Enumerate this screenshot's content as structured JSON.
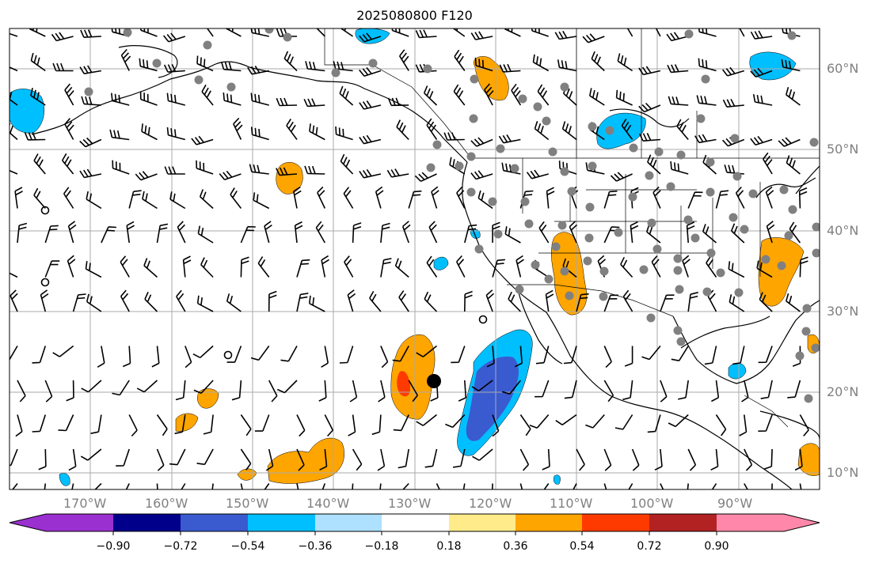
{
  "title": "2025080800 F120",
  "lat_labels": [
    "60°N",
    "50°N",
    "40°N",
    "30°N",
    "20°N",
    "10°N"
  ],
  "lon_labels": [
    "170°W",
    "160°W",
    "150°W",
    "140°W",
    "130°W",
    "120°W",
    "110°W",
    "100°W",
    "90°W"
  ],
  "colorbar": {
    "tick_labels": [
      "−0.90",
      "−0.72",
      "−0.54",
      "−0.36",
      "−0.18",
      "0.18",
      "0.36",
      "0.54",
      "0.72",
      "0.90"
    ],
    "colors": [
      "#9b30d0",
      "#00008b",
      "#3a5bd0",
      "#00bfff",
      "#aee0ff",
      "#ffffff",
      "#ffeb8a",
      "#ffa500",
      "#ff3a00",
      "#b22222",
      "#ff88aa"
    ],
    "extend": "both"
  },
  "map": {
    "lon_range": [
      -180,
      -80
    ],
    "lat_range": [
      8,
      65
    ],
    "projection": "plate-carree",
    "gridlines": true,
    "gridline_color": "#aaaaaa",
    "barb_color": "#000000",
    "station_marker_color": "#808080",
    "highlight_marker_color": "#000000",
    "highlight_marker_position": {
      "lon": -128.3,
      "lat": 21.3
    }
  }
}
